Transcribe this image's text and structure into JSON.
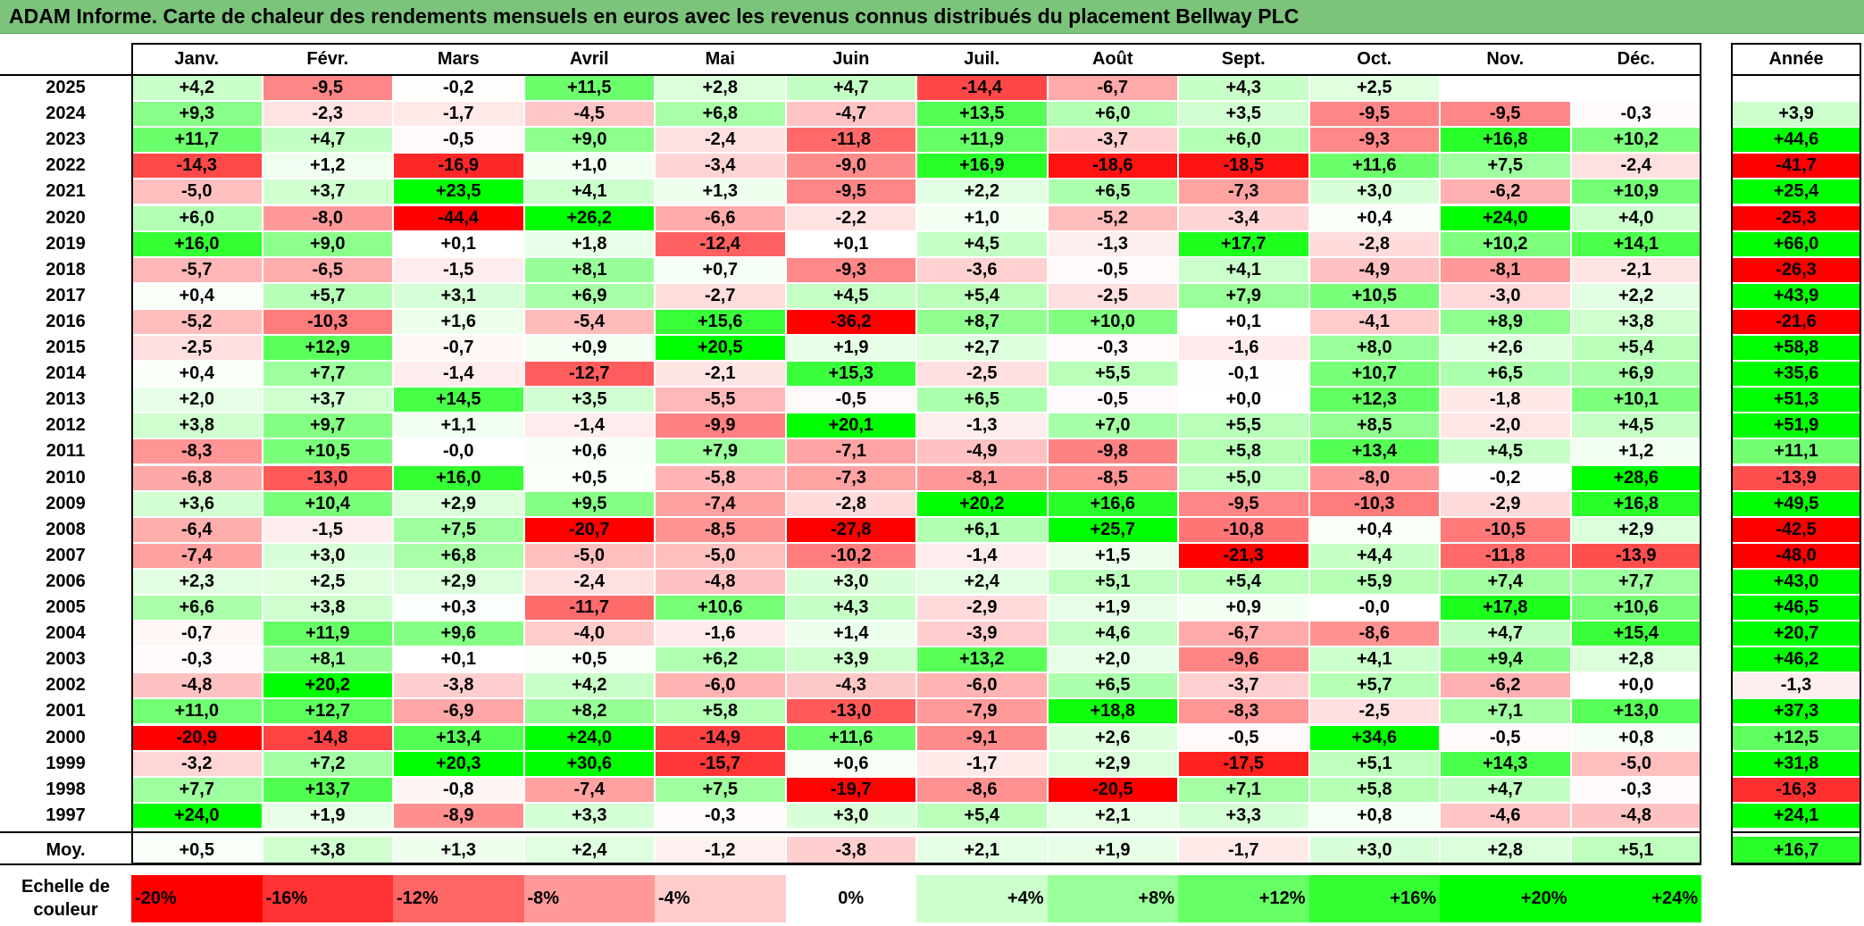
{
  "title": "ADAM Informe. Carte de chaleur des rendements mensuels en euros avec les revenus connus distribués du placement Bellway PLC",
  "chart_data": {
    "type": "heatmap",
    "title": "ADAM Informe. Carte de chaleur des rendements mensuels en euros avec les revenus connus distribués du placement Bellway PLC",
    "columns": [
      "Janv.",
      "Févr.",
      "Mars",
      "Avril",
      "Mai",
      "Juin",
      "Juil.",
      "Août",
      "Sept.",
      "Oct.",
      "Nov.",
      "Déc."
    ],
    "year_column_label": "Année",
    "rows": [
      {
        "year": "2025",
        "values": [
          "+4,2",
          "-9,5",
          "-0,2",
          "+11,5",
          "+2,8",
          "+4,7",
          "-14,4",
          "-6,7",
          "+4,3",
          "+2,5",
          "",
          ""
        ],
        "annual": ""
      },
      {
        "year": "2024",
        "values": [
          "+9,3",
          "-2,3",
          "-1,7",
          "-4,5",
          "+6,8",
          "-4,7",
          "+13,5",
          "+6,0",
          "+3,5",
          "-9,5",
          "-9,5",
          "-0,3"
        ],
        "annual": "+3,9"
      },
      {
        "year": "2023",
        "values": [
          "+11,7",
          "+4,7",
          "-0,5",
          "+9,0",
          "-2,4",
          "-11,8",
          "+11,9",
          "-3,7",
          "+6,0",
          "-9,3",
          "+16,8",
          "+10,2"
        ],
        "annual": "+44,6"
      },
      {
        "year": "2022",
        "values": [
          "-14,3",
          "+1,2",
          "-16,9",
          "+1,0",
          "-3,4",
          "-9,0",
          "+16,9",
          "-18,6",
          "-18,5",
          "+11,6",
          "+7,5",
          "-2,4"
        ],
        "annual": "-41,7"
      },
      {
        "year": "2021",
        "values": [
          "-5,0",
          "+3,7",
          "+23,5",
          "+4,1",
          "+1,3",
          "-9,5",
          "+2,2",
          "+6,5",
          "-7,3",
          "+3,0",
          "-6,2",
          "+10,9"
        ],
        "annual": "+25,4"
      },
      {
        "year": "2020",
        "values": [
          "+6,0",
          "-8,0",
          "-44,4",
          "+26,2",
          "-6,6",
          "-2,2",
          "+1,0",
          "-5,2",
          "-3,4",
          "+0,4",
          "+24,0",
          "+4,0"
        ],
        "annual": "-25,3"
      },
      {
        "year": "2019",
        "values": [
          "+16,0",
          "+9,0",
          "+0,1",
          "+1,8",
          "-12,4",
          "+0,1",
          "+4,5",
          "-1,3",
          "+17,7",
          "-2,8",
          "+10,2",
          "+14,1"
        ],
        "annual": "+66,0"
      },
      {
        "year": "2018",
        "values": [
          "-5,7",
          "-6,5",
          "-1,5",
          "+8,1",
          "+0,7",
          "-9,3",
          "-3,6",
          "-0,5",
          "+4,1",
          "-4,9",
          "-8,1",
          "-2,1"
        ],
        "annual": "-26,3"
      },
      {
        "year": "2017",
        "values": [
          "+0,4",
          "+5,7",
          "+3,1",
          "+6,9",
          "-2,7",
          "+4,5",
          "+5,4",
          "-2,5",
          "+7,9",
          "+10,5",
          "-3,0",
          "+2,2"
        ],
        "annual": "+43,9"
      },
      {
        "year": "2016",
        "values": [
          "-5,2",
          "-10,3",
          "+1,6",
          "-5,4",
          "+15,6",
          "-36,2",
          "+8,7",
          "+10,0",
          "+0,1",
          "-4,1",
          "+8,9",
          "+3,8"
        ],
        "annual": "-21,6"
      },
      {
        "year": "2015",
        "values": [
          "-2,5",
          "+12,9",
          "-0,7",
          "+0,9",
          "+20,5",
          "+1,9",
          "+2,7",
          "-0,3",
          "-1,6",
          "+8,0",
          "+2,6",
          "+5,4"
        ],
        "annual": "+58,8"
      },
      {
        "year": "2014",
        "values": [
          "+0,4",
          "+7,7",
          "-1,4",
          "-12,7",
          "-2,1",
          "+15,3",
          "-2,5",
          "+5,5",
          "-0,1",
          "+10,7",
          "+6,5",
          "+6,9"
        ],
        "annual": "+35,6"
      },
      {
        "year": "2013",
        "values": [
          "+2,0",
          "+3,7",
          "+14,5",
          "+3,5",
          "-5,5",
          "-0,5",
          "+6,5",
          "-0,5",
          "+0,0",
          "+12,3",
          "-1,8",
          "+10,1"
        ],
        "annual": "+51,3"
      },
      {
        "year": "2012",
        "values": [
          "+3,8",
          "+9,7",
          "+1,1",
          "-1,4",
          "-9,9",
          "+20,1",
          "-1,3",
          "+7,0",
          "+5,5",
          "+8,5",
          "-2,0",
          "+4,5"
        ],
        "annual": "+51,9"
      },
      {
        "year": "2011",
        "values": [
          "-8,3",
          "+10,5",
          "-0,0",
          "+0,6",
          "+7,9",
          "-7,1",
          "-4,9",
          "-9,8",
          "+5,8",
          "+13,4",
          "+4,5",
          "+1,2"
        ],
        "annual": "+11,1"
      },
      {
        "year": "2010",
        "values": [
          "-6,8",
          "-13,0",
          "+16,0",
          "+0,5",
          "-5,8",
          "-7,3",
          "-8,1",
          "-8,5",
          "+5,0",
          "-8,0",
          "-0,2",
          "+28,6"
        ],
        "annual": "-13,9"
      },
      {
        "year": "2009",
        "values": [
          "+3,6",
          "+10,4",
          "+2,9",
          "+9,5",
          "-7,4",
          "-2,8",
          "+20,2",
          "+16,6",
          "-9,5",
          "-10,3",
          "-2,9",
          "+16,8"
        ],
        "annual": "+49,5"
      },
      {
        "year": "2008",
        "values": [
          "-6,4",
          "-1,5",
          "+7,5",
          "-20,7",
          "-8,5",
          "-27,8",
          "+6,1",
          "+25,7",
          "-10,8",
          "+0,4",
          "-10,5",
          "+2,9"
        ],
        "annual": "-42,5"
      },
      {
        "year": "2007",
        "values": [
          "-7,4",
          "+3,0",
          "+6,8",
          "-5,0",
          "-5,0",
          "-10,2",
          "-1,4",
          "+1,5",
          "-21,3",
          "+4,4",
          "-11,8",
          "-13,9"
        ],
        "annual": "-48,0"
      },
      {
        "year": "2006",
        "values": [
          "+2,3",
          "+2,5",
          "+2,9",
          "-2,4",
          "-4,8",
          "+3,0",
          "+2,4",
          "+5,1",
          "+5,4",
          "+5,9",
          "+7,4",
          "+7,7"
        ],
        "annual": "+43,0"
      },
      {
        "year": "2005",
        "values": [
          "+6,6",
          "+3,8",
          "+0,3",
          "-11,7",
          "+10,6",
          "+4,3",
          "-2,9",
          "+1,9",
          "+0,9",
          "-0,0",
          "+17,8",
          "+10,6"
        ],
        "annual": "+46,5"
      },
      {
        "year": "2004",
        "values": [
          "-0,7",
          "+11,9",
          "+9,6",
          "-4,0",
          "-1,6",
          "+1,4",
          "-3,9",
          "+4,6",
          "-6,7",
          "-8,6",
          "+4,7",
          "+15,4"
        ],
        "annual": "+20,7"
      },
      {
        "year": "2003",
        "values": [
          "-0,3",
          "+8,1",
          "+0,1",
          "+0,5",
          "+6,2",
          "+3,9",
          "+13,2",
          "+2,0",
          "-9,6",
          "+4,1",
          "+9,4",
          "+2,8"
        ],
        "annual": "+46,2"
      },
      {
        "year": "2002",
        "values": [
          "-4,8",
          "+20,2",
          "-3,8",
          "+4,2",
          "-6,0",
          "-4,3",
          "-6,0",
          "+6,5",
          "-3,7",
          "+5,7",
          "-6,2",
          "+0,0"
        ],
        "annual": "-1,3"
      },
      {
        "year": "2001",
        "values": [
          "+11,0",
          "+12,7",
          "-6,9",
          "+8,2",
          "+5,8",
          "-13,0",
          "-7,9",
          "+18,8",
          "-8,3",
          "-2,5",
          "+7,1",
          "+13,0"
        ],
        "annual": "+37,3"
      },
      {
        "year": "2000",
        "values": [
          "-20,9",
          "-14,8",
          "+13,4",
          "+24,0",
          "-14,9",
          "+11,6",
          "-9,1",
          "+2,6",
          "-0,5",
          "+34,6",
          "-0,5",
          "+0,8"
        ],
        "annual": "+12,5"
      },
      {
        "year": "1999",
        "values": [
          "-3,2",
          "+7,2",
          "+20,3",
          "+30,6",
          "-15,7",
          "+0,6",
          "-1,7",
          "+2,9",
          "-17,5",
          "+5,1",
          "+14,3",
          "-5,0"
        ],
        "annual": "+31,8"
      },
      {
        "year": "1998",
        "values": [
          "+7,7",
          "+13,7",
          "-0,8",
          "-7,4",
          "+7,5",
          "-19,7",
          "-8,6",
          "-20,5",
          "+7,1",
          "+5,8",
          "+4,7",
          "-0,3"
        ],
        "annual": "-16,3"
      },
      {
        "year": "1997",
        "values": [
          "+24,0",
          "+1,9",
          "-8,9",
          "+3,3",
          "-0,3",
          "+3,0",
          "+5,4",
          "+2,1",
          "+3,3",
          "+0,8",
          "-4,6",
          "-4,8"
        ],
        "annual": "+24,1"
      }
    ],
    "average": {
      "label": "Moy.",
      "values": [
        "+0,5",
        "+3,8",
        "+1,3",
        "+2,4",
        "-1,2",
        "-3,8",
        "+2,1",
        "+1,9",
        "-1,7",
        "+3,0",
        "+2,8",
        "+5,1"
      ],
      "annual": "+16,7"
    },
    "color_scale": {
      "label_line1": "Echelle de",
      "label_line2": "couleur",
      "stops": [
        {
          "label": "-20%",
          "value": -20,
          "color": "#ff0000"
        },
        {
          "label": "-16%",
          "value": -16,
          "color": "#ff3333"
        },
        {
          "label": "-12%",
          "value": -12,
          "color": "#ff6666"
        },
        {
          "label": "-8%",
          "value": -8,
          "color": "#ff9999"
        },
        {
          "label": "-4%",
          "value": -4,
          "color": "#ffcccc"
        },
        {
          "label": "0%",
          "value": 0,
          "color": "#ffffff"
        },
        {
          "label": "+4%",
          "value": 4,
          "color": "#ccffcc"
        },
        {
          "label": "+8%",
          "value": 8,
          "color": "#99ff99"
        },
        {
          "label": "+12%",
          "value": 12,
          "color": "#66ff66"
        },
        {
          "label": "+16%",
          "value": 16,
          "color": "#33ff33"
        },
        {
          "label": "+20%",
          "value": 20,
          "color": "#00ff00"
        },
        {
          "label": "+24%",
          "value": 24,
          "color": "#00ff00"
        }
      ]
    }
  }
}
